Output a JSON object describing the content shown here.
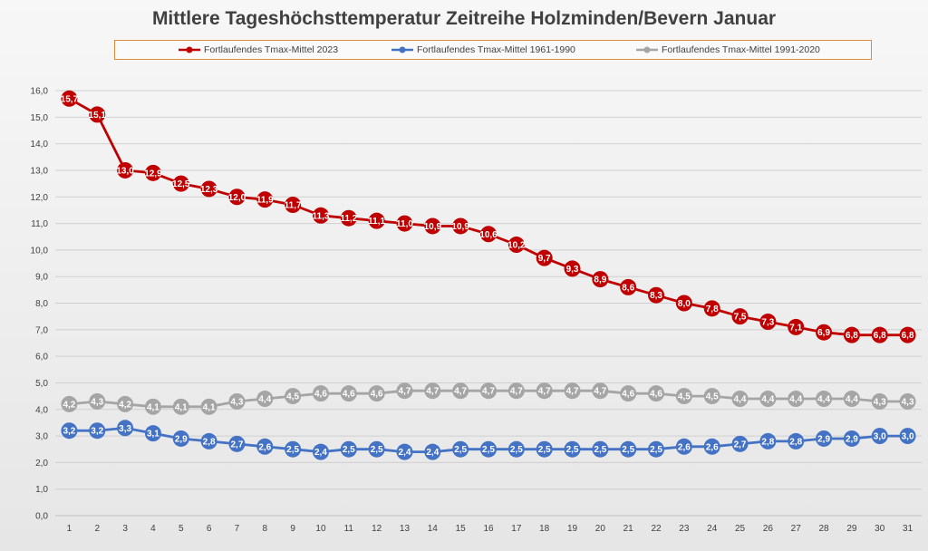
{
  "chart_data": {
    "type": "line",
    "title": "Mittlere Tageshöchsttemperatur Zeitreihe Holzminden/Bevern Januar",
    "xlabel": "",
    "ylabel": "",
    "ylim": [
      0,
      16
    ],
    "ytick_step": 1,
    "legend_position": "top",
    "grid": true,
    "categories": [
      "1",
      "2",
      "3",
      "4",
      "5",
      "6",
      "7",
      "8",
      "9",
      "10",
      "11",
      "12",
      "13",
      "14",
      "15",
      "16",
      "17",
      "18",
      "19",
      "20",
      "21",
      "22",
      "23",
      "24",
      "25",
      "26",
      "27",
      "28",
      "29",
      "30",
      "31"
    ],
    "series": [
      {
        "name": "Fortlaufendes Tmax-Mittel 2023",
        "color": "#c00000",
        "values": [
          15.7,
          15.1,
          13.0,
          12.9,
          12.5,
          12.3,
          12.0,
          11.9,
          11.7,
          11.3,
          11.2,
          11.1,
          11.0,
          10.9,
          10.9,
          10.6,
          10.2,
          9.7,
          9.3,
          8.9,
          8.6,
          8.3,
          8.0,
          7.8,
          7.5,
          7.3,
          7.1,
          6.9,
          6.8,
          6.8,
          6.8
        ]
      },
      {
        "name": "Fortlaufendes Tmax-Mittel 1961-1990",
        "color": "#4472c4",
        "values": [
          3.2,
          3.2,
          3.3,
          3.1,
          2.9,
          2.8,
          2.7,
          2.6,
          2.5,
          2.4,
          2.5,
          2.5,
          2.4,
          2.4,
          2.5,
          2.5,
          2.5,
          2.5,
          2.5,
          2.5,
          2.5,
          2.5,
          2.6,
          2.6,
          2.7,
          2.8,
          2.8,
          2.9,
          2.9,
          3.0,
          3.0
        ]
      },
      {
        "name": "Fortlaufendes Tmax-Mittel 1991-2020",
        "color": "#a5a5a5",
        "values": [
          4.2,
          4.3,
          4.2,
          4.1,
          4.1,
          4.1,
          4.3,
          4.4,
          4.5,
          4.6,
          4.6,
          4.6,
          4.7,
          4.7,
          4.7,
          4.7,
          4.7,
          4.7,
          4.7,
          4.7,
          4.6,
          4.6,
          4.5,
          4.5,
          4.4,
          4.4,
          4.4,
          4.4,
          4.4,
          4.3,
          4.3
        ]
      }
    ]
  }
}
